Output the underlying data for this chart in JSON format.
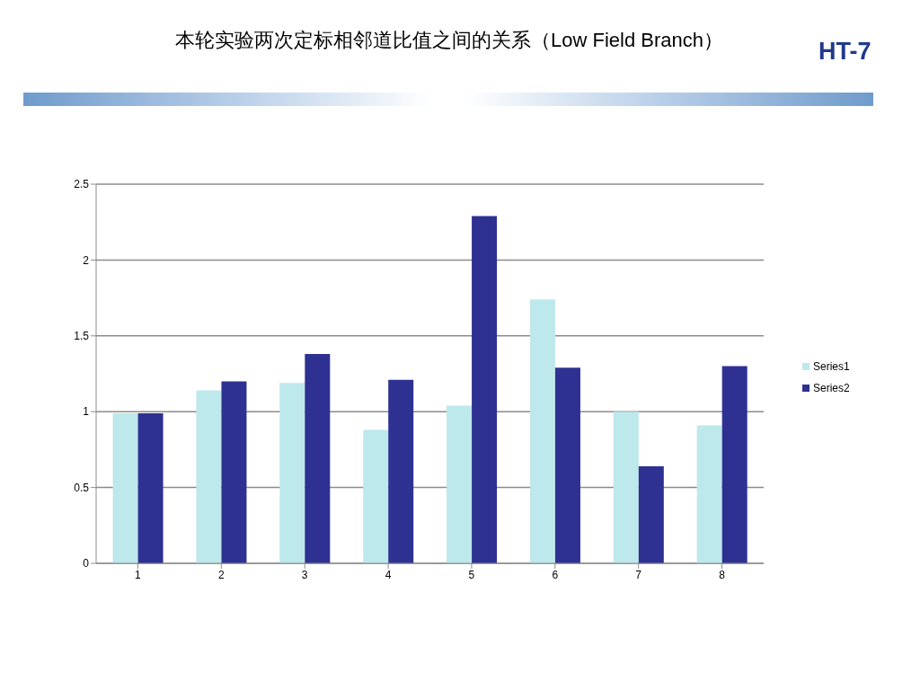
{
  "chart_data": {
    "type": "bar",
    "title": "本轮实验两次定标相邻道比值之间的关系（Low Field Branch）",
    "annotations": [
      "HT-7"
    ],
    "categories": [
      "1",
      "2",
      "3",
      "4",
      "5",
      "6",
      "7",
      "8"
    ],
    "series": [
      {
        "name": "Series1",
        "color": "#bde8ec",
        "values": [
          0.99,
          1.14,
          1.19,
          0.88,
          1.04,
          1.74,
          1.0,
          0.91
        ]
      },
      {
        "name": "Series2",
        "color": "#2e3192",
        "values": [
          0.99,
          1.2,
          1.38,
          1.21,
          2.29,
          1.29,
          0.64,
          1.3
        ]
      }
    ],
    "ylim": [
      0,
      2.5
    ],
    "yticks": [
      0,
      0.5,
      1,
      1.5,
      2,
      2.5
    ],
    "grid": "y",
    "legend": "right"
  }
}
